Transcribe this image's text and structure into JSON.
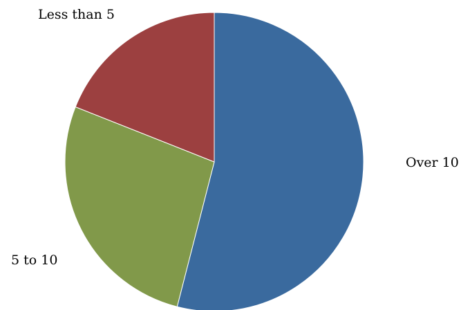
{
  "chart_data": {
    "type": "pie",
    "title": "",
    "categories": [
      "Over 10",
      "5 to 10",
      "Less than 5"
    ],
    "values": [
      54,
      27,
      19
    ],
    "colors": [
      "#3A6A9E",
      "#81994A",
      "#9C4040"
    ],
    "start_angle": "12 o'clock",
    "direction": "clockwise",
    "legend": "none",
    "labels": "category names outside slices"
  }
}
